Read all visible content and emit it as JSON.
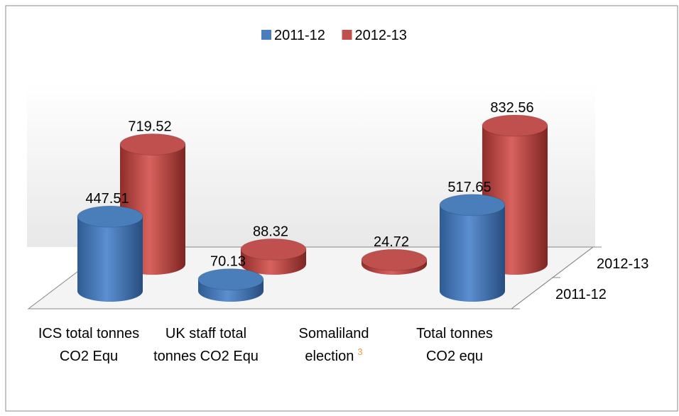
{
  "chart_data": {
    "type": "bar3d",
    "categories": [
      "ICS total tonnes CO2 Equ",
      "UK staff total tonnes CO2 Equ",
      "Somaliland election",
      "Total  tonnes CO2 equ"
    ],
    "category_footnotes": [
      null,
      null,
      "3",
      null
    ],
    "series": [
      {
        "name": "2011-12",
        "color": "#4a7ebb",
        "values": [
          447.51,
          70.13,
          null,
          517.65
        ]
      },
      {
        "name": "2012-13",
        "color": "#c0504d",
        "values": [
          719.52,
          88.32,
          24.72,
          832.56
        ]
      }
    ],
    "legend": "top"
  }
}
